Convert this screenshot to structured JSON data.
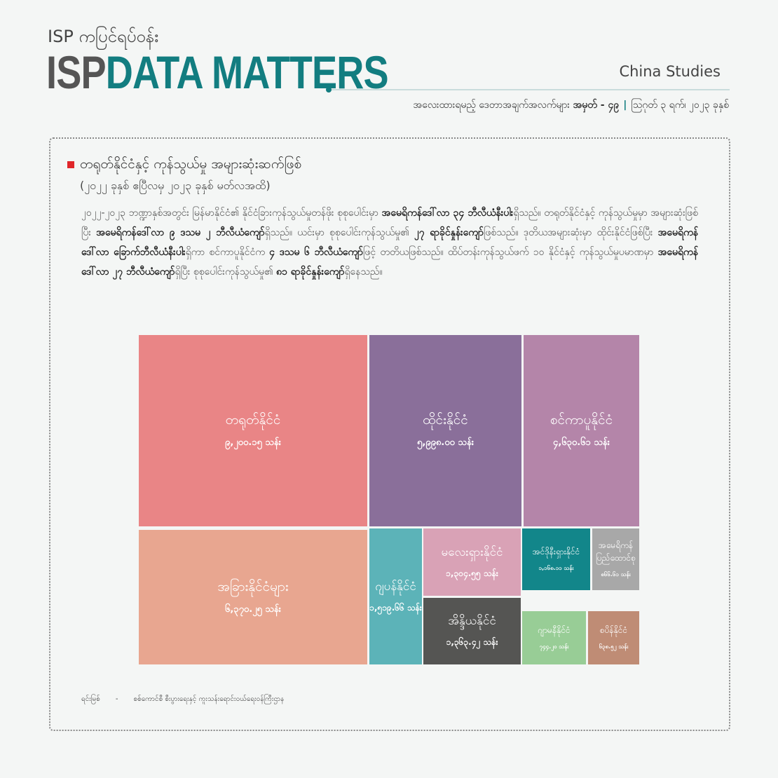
{
  "header": {
    "kicker": "ISP ကပြင်ရပ်ဝန်း",
    "brand_isp": "ISP",
    "brand_rest": "DATA MATTERS",
    "unit": "China Studies",
    "issue_prefix": "အလေးထားရမည့် ဒေတာအချက်အလက်များ",
    "issue_number": "အမှတ် - ၄၉",
    "date": "ဩဂုတ် ၃ ရက်၊ ၂၀၂၃ ခုနှစ်"
  },
  "card": {
    "title": "တရုတ်နိုင်ငံနှင့် ကုန်သွယ်မှု အများဆုံးဆက်ဖြစ်",
    "subtitle": "(၂၀၂၂ ခုနှစ် ဧပြီလမှ ၂၀၂၃ ခုနှစ် မတ်လအထိ)",
    "paragraph": [
      {
        "t": "၂၀၂၂-၂၀၂၃ ဘဏ္ဍာနှစ်အတွင်း မြန်မာနိုင်ငံ၏ နိုင်ငံခြားကုန်သွယ်မှုတန်ဖိုး စုစုပေါင်းမှာ "
      },
      {
        "b": "အမေရိကန်ဒေါ်လာ ၃၄ ဘီလီယံနီးပါး"
      },
      {
        "t": "ရှိသည်။ တရုတ်နိုင်ငံနှင့် ကုန်သွယ်မှုမှာ အများဆုံးဖြစ်ပြီး "
      },
      {
        "b": "အမေရိကန်ဒေါ်လာ ၉ ဒသမ ၂ ဘီလီယံကျော်"
      },
      {
        "t": "ရှိသည်။ ယင်းမှာ စုစုပေါင်းကုန်သွယ်မှု၏ "
      },
      {
        "b": "၂၇ ရာခိုင်နှုန်းကျော်"
      },
      {
        "t": "ဖြစ်သည်။ ဒုတိယအများဆုံးမှာ ထိုင်းနိုင်ငံဖြစ်ပြီး "
      },
      {
        "b": "အမေရိကန်ဒေါ်လာ ခြောက်ဘီလီယံနီးပါး"
      },
      {
        "t": "ရှိကာ စင်ကာပူနိုင်ငံက "
      },
      {
        "b": "၄ ဒသမ ၆ ဘီလီယံကျော်"
      },
      {
        "t": "ဖြင့် တတိယဖြစ်သည်။ ထိပ်တန်းကုန်သွယ်ဖက် ၁၀ နိုင်ငံနှင့် ကုန်သွယ်မှုပမာဏမှာ "
      },
      {
        "b": "အမေရိကန်ဒေါ်လာ ၂၇ ဘီလီယံကျော်"
      },
      {
        "t": "ရှိပြီး စုစုပေါင်းကုန်သွယ်မှု၏ "
      },
      {
        "b": "၈၁ ရာခိုင်နှုန်းကျော်"
      },
      {
        "t": "ရှိနေသည်။"
      }
    ]
  },
  "chart_data": {
    "type": "treemap",
    "unit": "သန်း",
    "items": [
      {
        "name": "တရုတ်နိုင်ငံ",
        "label": "၉,၂၀၀.၁၅ သန်း",
        "value": 9200.15,
        "color": "#e98586"
      },
      {
        "name": "ထိုင်းနိုင်ငံ",
        "label": "၅,၉၉၈.၀၀ သန်း",
        "value": 5998.0,
        "color": "#8a6f9a"
      },
      {
        "name": "စင်ကာပူနိုင်ငံ",
        "label": "၄,၆၃၀.၆၁ သန်း",
        "value": 4630.61,
        "color": "#b485a9"
      },
      {
        "name": "အခြားနိုင်ငံများ",
        "label": "၆,၃၇၀.၂၅ သန်း",
        "value": 6370.25,
        "color": "#e8a690"
      },
      {
        "name": "ဂျပန်နိုင်ငံ",
        "label": "၁,၅၁၉.၆၆ သန်း",
        "value": 1519.66,
        "color": "#5cb3b8"
      },
      {
        "name": "မလေးရှားနိုင်ငံ",
        "label": "၁,၃၀၄.၅၅ သန်း",
        "value": 1304.55,
        "color": "#d9a2b6"
      },
      {
        "name": "အိန္ဒိယနိုင်ငံ",
        "label": "၁,၃၆၃.၄၂ သန်း",
        "value": 1363.42,
        "color": "#555553"
      },
      {
        "name": "အင်ဒိုနီးရှားနိုင်ငံ",
        "label": "၁,၁၆၈.၁၁ သန်း",
        "value": 1168.11,
        "color": "#12868a"
      },
      {
        "name": "အမေရိကန်ပြည်ထောင်စု",
        "label": "၈၆၆.၆၁ သန်း",
        "value": 866.61,
        "color": "#a8a8a8"
      },
      {
        "name": "ဂျာမနီနိုင်ငံ",
        "label": "၇၄၄.၂၀ သန်း",
        "value": 744.2,
        "color": "#98cd96"
      },
      {
        "name": "စပိန်နိုင်ငံ",
        "label": "၆၃၈.၅၂ သန်း",
        "value": 638.52,
        "color": "#bf8c75"
      }
    ]
  },
  "source": {
    "label": "ရင်းမြစ်",
    "dash": "-",
    "text": "စစ်ကောင်စီ စီးပွားရေးနှင့် ကူးသန်းရောင်းဝယ်ရေးဝန်ကြီးဌာန"
  }
}
